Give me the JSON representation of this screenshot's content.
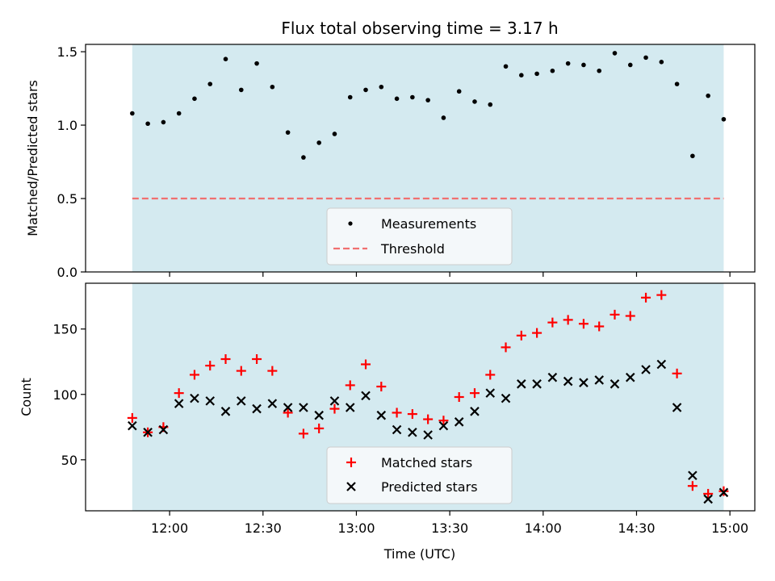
{
  "chart_data": [
    {
      "type": "scatter",
      "title": "Flux total observing time = 3.17 h",
      "xlabel": "",
      "ylabel": "Matched/Predicted stars",
      "ylim": [
        0,
        1.55
      ],
      "yticks": [
        "0.0",
        "0.5",
        "1.0",
        "1.5"
      ],
      "shaded_background": "#d4eaf0",
      "legend_position": "lower-center",
      "series": [
        {
          "name": "Measurements",
          "marker": "dot",
          "color": "#000000",
          "x": [
            "11:48",
            "11:53",
            "11:58",
            "12:03",
            "12:08",
            "12:13",
            "12:18",
            "12:23",
            "12:28",
            "12:33",
            "12:38",
            "12:43",
            "12:48",
            "12:53",
            "12:58",
            "13:03",
            "13:08",
            "13:13",
            "13:18",
            "13:23",
            "13:28",
            "13:33",
            "13:38",
            "13:43",
            "13:48",
            "13:53",
            "13:58",
            "14:03",
            "14:08",
            "14:13",
            "14:18",
            "14:23",
            "14:28",
            "14:33",
            "14:38",
            "14:43",
            "14:48",
            "14:53",
            "14:58"
          ],
          "y": [
            1.08,
            1.01,
            1.02,
            1.08,
            1.18,
            1.28,
            1.45,
            1.24,
            1.42,
            1.26,
            0.95,
            0.78,
            0.88,
            0.94,
            1.19,
            1.24,
            1.26,
            1.18,
            1.19,
            1.17,
            1.05,
            1.23,
            1.16,
            1.14,
            1.4,
            1.34,
            1.35,
            1.37,
            1.42,
            1.41,
            1.37,
            1.49,
            1.41,
            1.46,
            1.43,
            1.28,
            0.79,
            1.2,
            1.04
          ]
        },
        {
          "name": "Threshold",
          "marker": "dashed-line",
          "color": "#f07070",
          "x": [
            "11:48",
            "14:58"
          ],
          "y": [
            0.5,
            0.5
          ]
        }
      ]
    },
    {
      "type": "scatter",
      "title": "",
      "xlabel": "Time (UTC)",
      "ylabel": "Count",
      "ylim": [
        11,
        185
      ],
      "yticks": [
        "50",
        "100",
        "150"
      ],
      "xlim": [
        "11:33",
        "15:08"
      ],
      "xticks": [
        "12:00",
        "12:30",
        "13:00",
        "13:30",
        "14:00",
        "14:30",
        "15:00"
      ],
      "shaded_background": "#d4eaf0",
      "legend_position": "lower-center",
      "series": [
        {
          "name": "Matched stars",
          "marker": "plus",
          "color": "#ff0000",
          "x": [
            "11:48",
            "11:53",
            "11:58",
            "12:03",
            "12:08",
            "12:13",
            "12:18",
            "12:23",
            "12:28",
            "12:33",
            "12:38",
            "12:43",
            "12:48",
            "12:53",
            "12:58",
            "13:03",
            "13:08",
            "13:13",
            "13:18",
            "13:23",
            "13:28",
            "13:33",
            "13:38",
            "13:43",
            "13:48",
            "13:53",
            "13:58",
            "14:03",
            "14:08",
            "14:13",
            "14:18",
            "14:23",
            "14:28",
            "14:33",
            "14:38",
            "14:43",
            "14:48",
            "14:53",
            "14:58"
          ],
          "y": [
            82,
            71,
            75,
            101,
            115,
            122,
            127,
            118,
            127,
            118,
            86,
            70,
            74,
            89,
            107,
            123,
            106,
            86,
            85,
            81,
            80,
            98,
            101,
            115,
            136,
            145,
            147,
            155,
            157,
            154,
            152,
            161,
            160,
            174,
            176,
            116,
            30,
            24,
            26
          ]
        },
        {
          "name": "Predicted stars",
          "marker": "x",
          "color": "#000000",
          "x": [
            "11:48",
            "11:53",
            "11:58",
            "12:03",
            "12:08",
            "12:13",
            "12:18",
            "12:23",
            "12:28",
            "12:33",
            "12:38",
            "12:43",
            "12:48",
            "12:53",
            "12:58",
            "13:03",
            "13:08",
            "13:13",
            "13:18",
            "13:23",
            "13:28",
            "13:33",
            "13:38",
            "13:43",
            "13:48",
            "13:53",
            "13:58",
            "14:03",
            "14:08",
            "14:13",
            "14:18",
            "14:23",
            "14:28",
            "14:33",
            "14:38",
            "14:43",
            "14:48",
            "14:53",
            "14:58"
          ],
          "y": [
            76,
            71,
            73,
            93,
            97,
            95,
            87,
            95,
            89,
            93,
            90,
            90,
            84,
            95,
            90,
            99,
            84,
            73,
            71,
            69,
            76,
            79,
            87,
            101,
            97,
            108,
            108,
            113,
            110,
            109,
            111,
            108,
            113,
            119,
            123,
            90,
            38,
            20,
            25
          ]
        }
      ]
    }
  ]
}
